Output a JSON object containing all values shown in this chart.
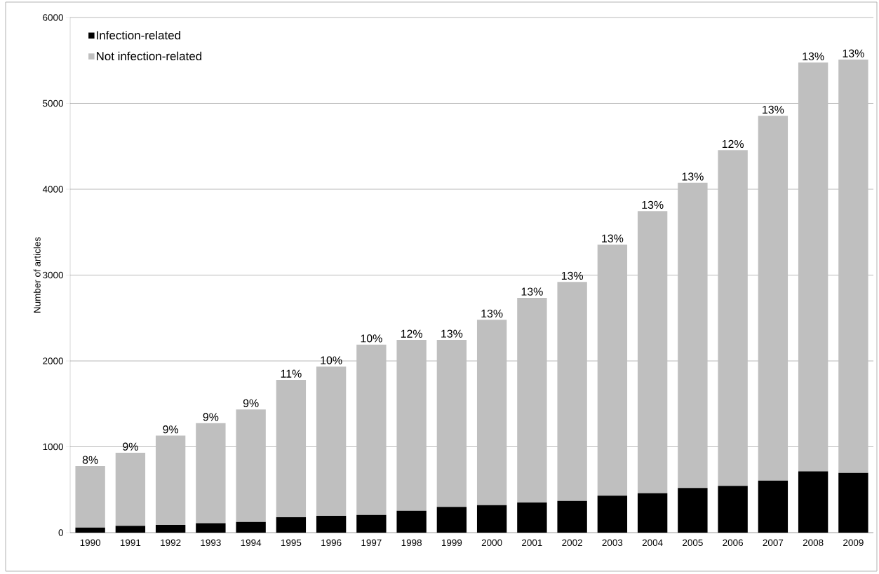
{
  "chart_data": {
    "type": "bar",
    "stacked": true,
    "ylabel": "Number of articles",
    "categories": [
      "1990",
      "1991",
      "1992",
      "1993",
      "1994",
      "1995",
      "1996",
      "1997",
      "1998",
      "1999",
      "2000",
      "2001",
      "2002",
      "2003",
      "2004",
      "2005",
      "2006",
      "2007",
      "2008",
      "2009"
    ],
    "series": [
      {
        "name": "Infection-related",
        "color": "#000000",
        "values": [
          60,
          80,
          90,
          110,
          125,
          180,
          195,
          205,
          255,
          300,
          320,
          350,
          370,
          430,
          460,
          520,
          545,
          605,
          715,
          695
        ]
      },
      {
        "name": "Not infection-related",
        "color": "#bfbfbf",
        "values": [
          715,
          850,
          1040,
          1165,
          1310,
          1600,
          1740,
          1985,
          1990,
          1945,
          2160,
          2385,
          2550,
          2925,
          3285,
          3555,
          3910,
          4250,
          4760,
          4815
        ]
      }
    ],
    "ylim": [
      0,
      6000
    ],
    "yticks": [
      0,
      1000,
      2000,
      3000,
      4000,
      5000,
      6000
    ],
    "grid": "y",
    "legend": "top left",
    "annotations": [
      {
        "text": "8%",
        "x": "1990",
        "y": 775
      },
      {
        "text": "9%",
        "x": "1991",
        "y": 930
      },
      {
        "text": "9%",
        "x": "1992",
        "y": 1130
      },
      {
        "text": "9%",
        "x": "1993",
        "y": 1275
      },
      {
        "text": "9%",
        "x": "1994",
        "y": 1435
      },
      {
        "text": "11%",
        "x": "1995",
        "y": 1780
      },
      {
        "text": "10%",
        "x": "1996",
        "y": 1935
      },
      {
        "text": "10%",
        "x": "1997",
        "y": 2190
      },
      {
        "text": "12%",
        "x": "1998",
        "y": 2245
      },
      {
        "text": "13%",
        "x": "1999",
        "y": 2245
      },
      {
        "text": "13%",
        "x": "2000",
        "y": 2480
      },
      {
        "text": "13%",
        "x": "2001",
        "y": 2735
      },
      {
        "text": "13%",
        "x": "2002",
        "y": 2920
      },
      {
        "text": "13%",
        "x": "2003",
        "y": 3355
      },
      {
        "text": "13%",
        "x": "2004",
        "y": 3745
      },
      {
        "text": "13%",
        "x": "2005",
        "y": 4075
      },
      {
        "text": "12%",
        "x": "2006",
        "y": 4455
      },
      {
        "text": "13%",
        "x": "2007",
        "y": 4855
      },
      {
        "text": "13%",
        "x": "2008",
        "y": 5475
      },
      {
        "text": "13%",
        "x": "2009",
        "y": 5510
      }
    ]
  }
}
